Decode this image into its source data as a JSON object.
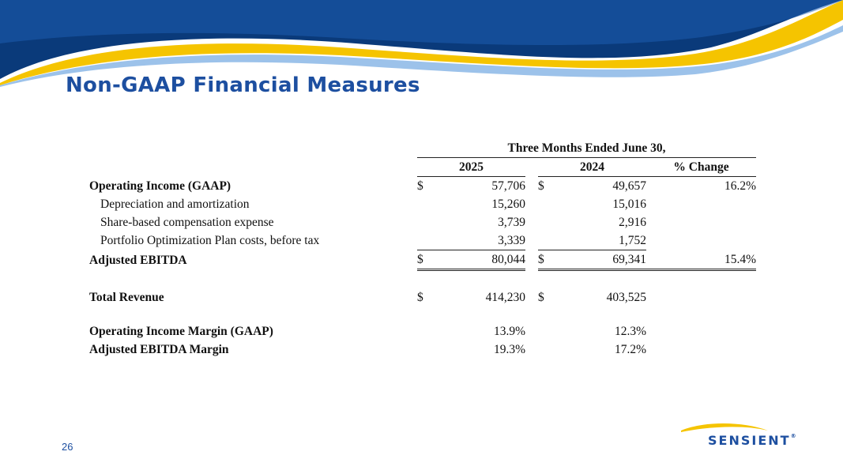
{
  "slide": {
    "title": "Non-GAAP Financial Measures",
    "page_number": "26",
    "logo_text": "SENSIENT",
    "logo_mark": "®",
    "colors": {
      "primary_blue": "#1d4fa0",
      "dark_blue": "#0a3a7a",
      "accent_yellow": "#f5c400",
      "light_blue": "#4a90d9"
    }
  },
  "table": {
    "period_header": "Three Months Ended June 30,",
    "columns": [
      "2025",
      "2024",
      "% Change"
    ],
    "currency_symbol": "$",
    "rows": {
      "operating_income": {
        "label": "Operating Income (GAAP)",
        "v2025": "57,706",
        "v2024": "49,657",
        "change": "16.2%"
      },
      "depreciation": {
        "label": "Depreciation and amortization",
        "v2025": "15,260",
        "v2024": "15,016"
      },
      "share_based": {
        "label": "Share-based compensation expense",
        "v2025": "3,739",
        "v2024": "2,916"
      },
      "portfolio": {
        "label": "Portfolio Optimization Plan costs, before tax",
        "v2025": "3,339",
        "v2024": "1,752"
      },
      "adjusted_ebitda": {
        "label": "Adjusted EBITDA",
        "v2025": "80,044",
        "v2024": "69,341",
        "change": "15.4%"
      },
      "total_revenue": {
        "label": "Total Revenue",
        "v2025": "414,230",
        "v2024": "403,525"
      },
      "op_margin": {
        "label": "Operating Income Margin (GAAP)",
        "v2025": "13.9%",
        "v2024": "12.3%"
      },
      "ebitda_margin": {
        "label": "Adjusted EBITDA Margin",
        "v2025": "19.3%",
        "v2024": "17.2%"
      }
    }
  }
}
